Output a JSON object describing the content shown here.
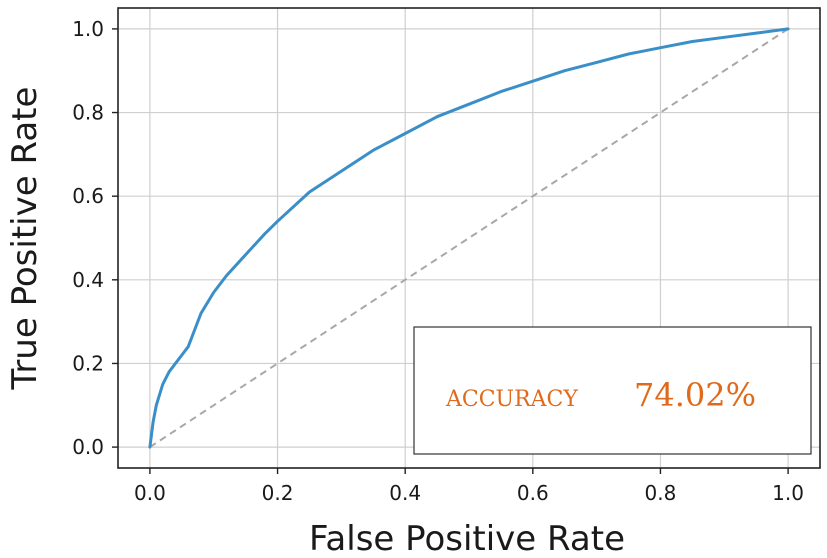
{
  "chart_data": {
    "type": "line",
    "title": "",
    "xlabel": "False Positive Rate",
    "ylabel": "True Positive Rate",
    "xlim": [
      -0.05,
      1.05
    ],
    "ylim": [
      -0.05,
      1.05
    ],
    "grid": true,
    "xticks": [
      0.0,
      0.2,
      0.4,
      0.6,
      0.8,
      1.0
    ],
    "yticks": [
      0.0,
      0.2,
      0.4,
      0.6,
      0.8,
      1.0
    ],
    "xtick_labels": [
      "0.0",
      "0.2",
      "0.4",
      "0.6",
      "0.8",
      "1.0"
    ],
    "ytick_labels": [
      "0.0",
      "0.2",
      "0.4",
      "0.6",
      "0.8",
      "1.0"
    ],
    "series": [
      {
        "style": "solid",
        "color": "#3a8fc8",
        "x": [
          0.0,
          0.005,
          0.01,
          0.02,
          0.03,
          0.04,
          0.05,
          0.06,
          0.07,
          0.08,
          0.1,
          0.12,
          0.15,
          0.18,
          0.2,
          0.25,
          0.3,
          0.35,
          0.4,
          0.45,
          0.5,
          0.55,
          0.6,
          0.65,
          0.7,
          0.75,
          0.8,
          0.85,
          0.9,
          0.95,
          1.0
        ],
        "y": [
          0.0,
          0.06,
          0.1,
          0.15,
          0.18,
          0.2,
          0.22,
          0.24,
          0.28,
          0.32,
          0.37,
          0.41,
          0.46,
          0.51,
          0.54,
          0.61,
          0.66,
          0.71,
          0.75,
          0.79,
          0.82,
          0.85,
          0.875,
          0.9,
          0.92,
          0.94,
          0.955,
          0.97,
          0.98,
          0.99,
          1.0
        ]
      },
      {
        "style": "dashed",
        "color": "#a8a8a8",
        "x": [
          0.0,
          1.0
        ],
        "y": [
          0.0,
          1.0
        ]
      }
    ],
    "annotation": {
      "label": "ACCURACY",
      "value": "74.02%",
      "color": "#e06a1b",
      "placement": "bottom-right"
    }
  }
}
